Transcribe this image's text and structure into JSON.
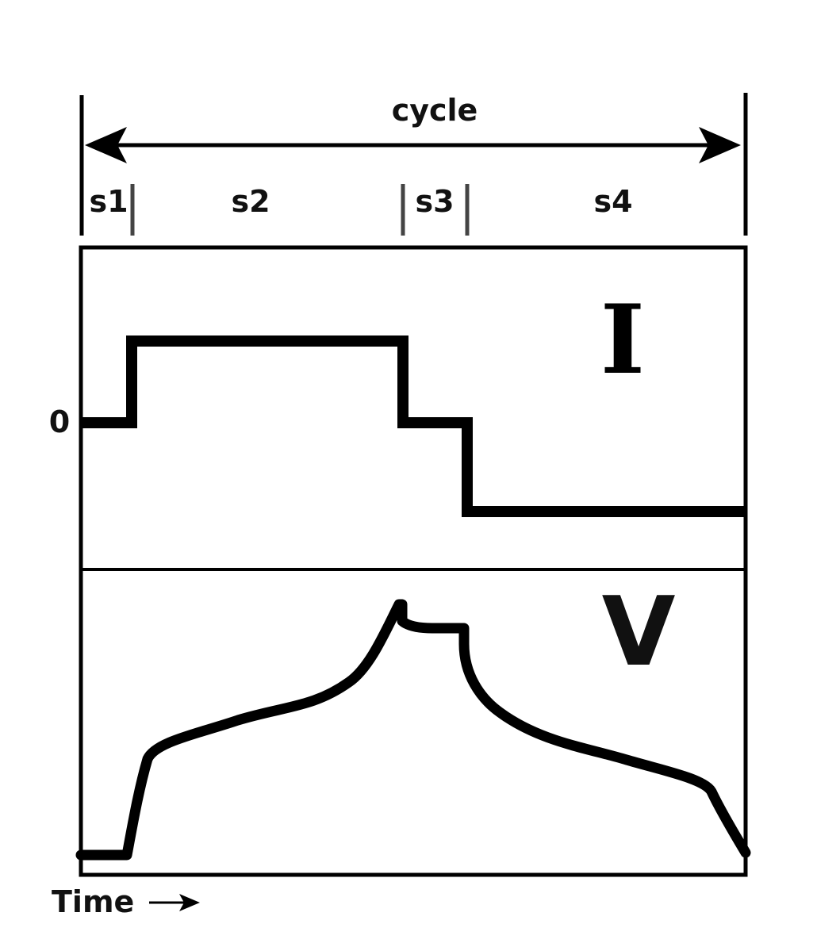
{
  "diagram": {
    "cycle_label": "cycle",
    "stages": [
      "s1",
      "s2",
      "s3",
      "s4"
    ],
    "zero_label": "0",
    "current_symbol": "I",
    "voltage_symbol": "V",
    "time_label": "Time"
  },
  "colors": {
    "ink": "#000000",
    "stage_divider": "#444444",
    "background": "#ffffff"
  }
}
